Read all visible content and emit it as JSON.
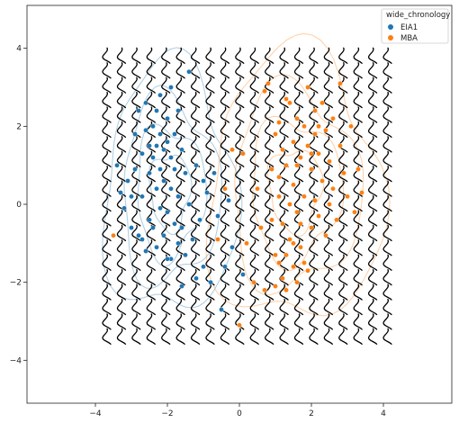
{
  "chart_data": {
    "type": "scatter",
    "title": "",
    "xlabel": "",
    "ylabel": "",
    "xlim": [
      -5.9,
      5.9
    ],
    "ylim": [
      -5.1,
      5.1
    ],
    "xticks": [
      -4,
      -2,
      0,
      2,
      4
    ],
    "yticks": [
      -4,
      -2,
      0,
      2,
      4
    ],
    "xtick_labels": [
      "−4",
      "−2",
      "0",
      "2",
      "4"
    ],
    "ytick_labels": [
      "−4",
      "−2",
      "0",
      "2",
      "4"
    ],
    "grid": false,
    "legend": {
      "title": "wide_chronology",
      "placement": "top-right",
      "entries": [
        "EIA1",
        "MBA"
      ]
    },
    "glyph_grid": {
      "x_start": -3.7,
      "x_end": 4.1,
      "x_count": 20,
      "y_start": -3.4,
      "y_end": 3.8,
      "y_count": 20,
      "color": "#000000"
    },
    "series": [
      {
        "name": "EIA1",
        "color": "#1f77b4",
        "points": [
          [
            -3.4,
            1.0
          ],
          [
            -3.3,
            0.3
          ],
          [
            -3.2,
            -0.1
          ],
          [
            -3.1,
            0.6
          ],
          [
            -3.0,
            -0.6
          ],
          [
            -2.9,
            0.9
          ],
          [
            -2.9,
            1.8
          ],
          [
            -2.8,
            2.4
          ],
          [
            -2.8,
            -0.8
          ],
          [
            -2.7,
            1.3
          ],
          [
            -2.7,
            0.2
          ],
          [
            -2.6,
            2.6
          ],
          [
            -2.6,
            -1.2
          ],
          [
            -2.5,
            1.5
          ],
          [
            -2.5,
            0.8
          ],
          [
            -2.5,
            -0.4
          ],
          [
            -2.4,
            2.0
          ],
          [
            -2.4,
            1.2
          ],
          [
            -2.3,
            1.5
          ],
          [
            -2.3,
            0.4
          ],
          [
            -2.3,
            -1.1
          ],
          [
            -2.2,
            2.8
          ],
          [
            -2.2,
            1.8
          ],
          [
            -2.2,
            -0.1
          ],
          [
            -2.1,
            1.4
          ],
          [
            -2.1,
            0.6
          ],
          [
            -2.1,
            -0.8
          ],
          [
            -2.0,
            2.2
          ],
          [
            -2.0,
            1.6
          ],
          [
            -2.0,
            -0.2
          ],
          [
            -1.9,
            3.0
          ],
          [
            -1.9,
            1.2
          ],
          [
            -1.9,
            -1.4
          ],
          [
            -1.8,
            1.8
          ],
          [
            -1.8,
            0.9
          ],
          [
            -1.8,
            -0.5
          ],
          [
            -1.7,
            0.2
          ],
          [
            -1.7,
            -1.0
          ],
          [
            -1.6,
            1.4
          ],
          [
            -1.6,
            -0.6
          ],
          [
            -1.6,
            -2.1
          ],
          [
            -1.5,
            0.8
          ],
          [
            -1.5,
            -1.3
          ],
          [
            -1.4,
            3.4
          ],
          [
            -1.4,
            0.0
          ],
          [
            -1.3,
            -0.9
          ],
          [
            -1.2,
            1.0
          ],
          [
            -1.1,
            -0.4
          ],
          [
            -1.0,
            -1.6
          ],
          [
            -0.9,
            0.3
          ],
          [
            -0.8,
            -2.0
          ],
          [
            -0.7,
            0.8
          ],
          [
            -0.6,
            -0.3
          ],
          [
            -0.5,
            -2.7
          ],
          [
            -0.4,
            -1.6
          ],
          [
            -0.3,
            0.1
          ],
          [
            -2.6,
            1.9
          ],
          [
            -2.4,
            -0.6
          ],
          [
            -2.2,
            0.9
          ],
          [
            -1.9,
            0.4
          ],
          [
            -2.7,
            -0.9
          ],
          [
            -2.0,
            -1.4
          ],
          [
            -1.7,
            2.4
          ],
          [
            -1.2,
            -1.9
          ],
          [
            -3.0,
            0.2
          ],
          [
            -0.2,
            -1.1
          ],
          [
            0.1,
            -1.8
          ],
          [
            -1.0,
            0.6
          ],
          [
            -2.3,
            2.4
          ]
        ]
      },
      {
        "name": "MBA",
        "color": "#ff7f0e",
        "points": [
          [
            -3.5,
            -0.8
          ],
          [
            -0.6,
            -0.9
          ],
          [
            -0.4,
            0.4
          ],
          [
            -0.2,
            1.4
          ],
          [
            0.0,
            -3.1
          ],
          [
            0.1,
            1.3
          ],
          [
            0.2,
            -1.0
          ],
          [
            0.4,
            -2.0
          ],
          [
            0.5,
            0.4
          ],
          [
            0.6,
            -0.6
          ],
          [
            0.7,
            2.9
          ],
          [
            0.7,
            -2.2
          ],
          [
            0.8,
            3.1
          ],
          [
            0.9,
            0.9
          ],
          [
            1.0,
            1.8
          ],
          [
            1.0,
            -1.3
          ],
          [
            1.1,
            2.1
          ],
          [
            1.1,
            0.2
          ],
          [
            1.1,
            -1.5
          ],
          [
            1.2,
            1.4
          ],
          [
            1.2,
            -0.5
          ],
          [
            1.2,
            -1.9
          ],
          [
            1.3,
            1.0
          ],
          [
            1.3,
            -2.2
          ],
          [
            1.4,
            2.6
          ],
          [
            1.4,
            -0.9
          ],
          [
            1.5,
            1.6
          ],
          [
            1.5,
            0.5
          ],
          [
            1.5,
            -1.6
          ],
          [
            1.6,
            2.2
          ],
          [
            1.6,
            -0.2
          ],
          [
            1.6,
            -2.0
          ],
          [
            1.7,
            1.2
          ],
          [
            1.7,
            -1.1
          ],
          [
            1.8,
            2.0
          ],
          [
            1.8,
            0.2
          ],
          [
            1.8,
            -1.5
          ],
          [
            1.9,
            3.0
          ],
          [
            1.9,
            1.5
          ],
          [
            2.0,
            0.9
          ],
          [
            2.0,
            -0.6
          ],
          [
            2.1,
            2.4
          ],
          [
            2.1,
            1.8
          ],
          [
            2.1,
            0.1
          ],
          [
            2.2,
            1.3
          ],
          [
            2.2,
            -0.3
          ],
          [
            2.3,
            2.6
          ],
          [
            2.3,
            0.6
          ],
          [
            2.4,
            1.9
          ],
          [
            2.4,
            -0.8
          ],
          [
            2.5,
            1.1
          ],
          [
            2.6,
            0.4
          ],
          [
            2.6,
            2.2
          ],
          [
            2.7,
            -0.4
          ],
          [
            2.8,
            1.5
          ],
          [
            2.8,
            3.1
          ],
          [
            2.9,
            0.8
          ],
          [
            3.0,
            0.2
          ],
          [
            3.1,
            2.0
          ],
          [
            3.2,
            -0.2
          ],
          [
            3.3,
            0.9
          ],
          [
            3.4,
            0.3
          ],
          [
            1.3,
            -1.3
          ],
          [
            1.5,
            -1.0
          ],
          [
            1.9,
            -1.7
          ],
          [
            1.0,
            -2.1
          ],
          [
            1.6,
            1.0
          ],
          [
            2.2,
            2.0
          ],
          [
            1.4,
            0.0
          ],
          [
            1.7,
            -0.5
          ],
          [
            1.1,
            0.7
          ],
          [
            2.0,
            1.3
          ],
          [
            2.5,
            0.0
          ],
          [
            1.3,
            2.7
          ],
          [
            0.9,
            -0.4
          ]
        ]
      }
    ]
  }
}
